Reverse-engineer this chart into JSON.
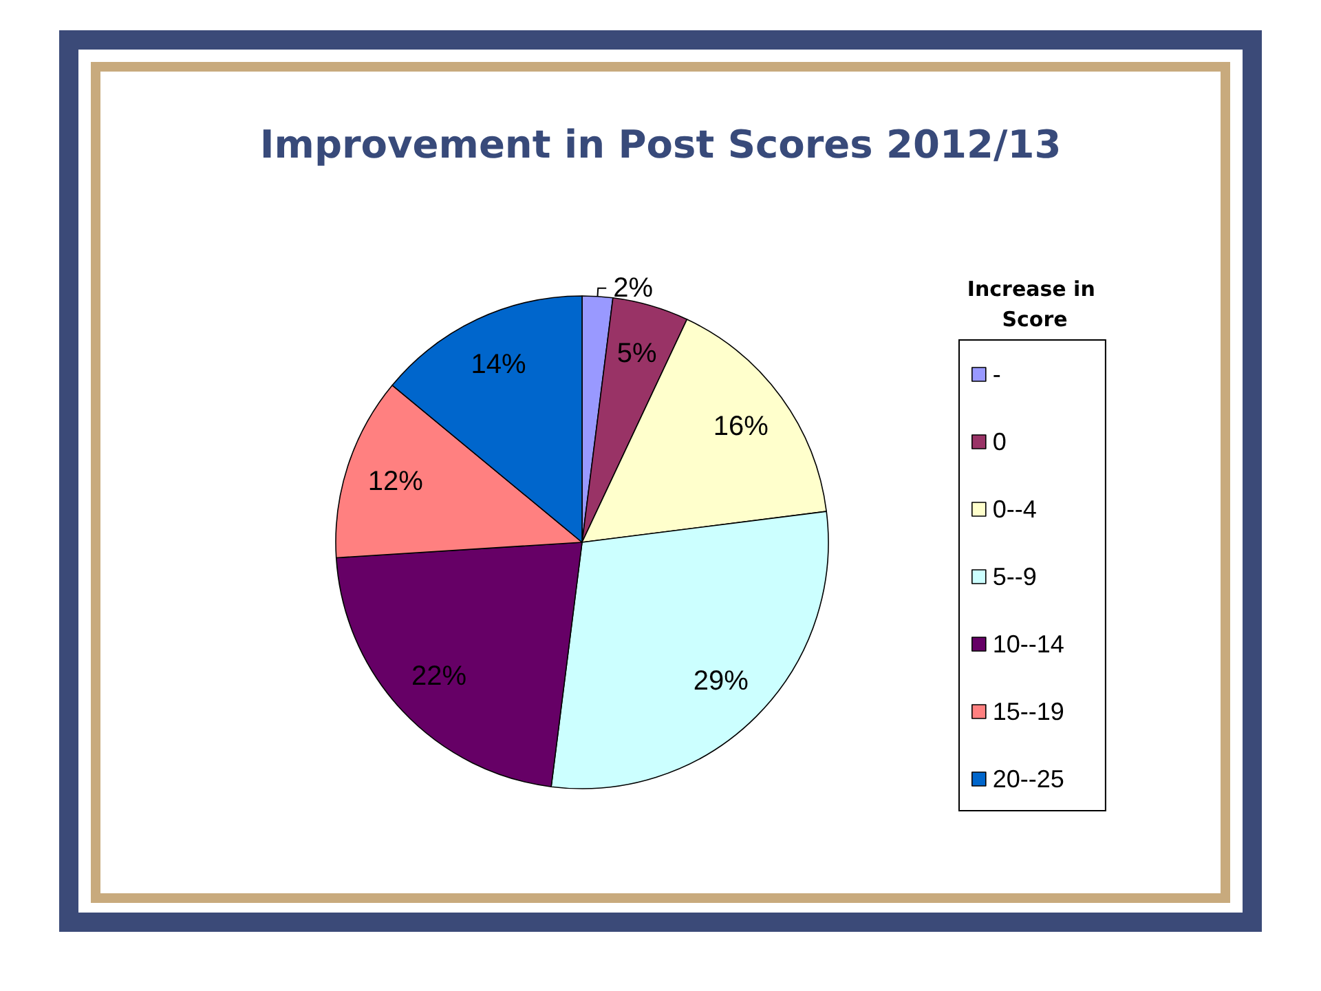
{
  "chart_data": {
    "type": "pie",
    "title": "Improvement in Post Scores 2012/13",
    "legend_title": "Increase in Score",
    "categories": [
      "-",
      "0",
      "0--4",
      "5--9",
      "10--14",
      "15--19",
      "20--25"
    ],
    "values": [
      2,
      5,
      16,
      29,
      22,
      12,
      14
    ],
    "value_labels": [
      "2%",
      "5%",
      "16%",
      "29%",
      "22%",
      "12%",
      "14%"
    ],
    "colors": [
      "#9999ff",
      "#993366",
      "#ffffcc",
      "#ccffff",
      "#660066",
      "#ff8080",
      "#0066cc"
    ],
    "legend": "right"
  }
}
